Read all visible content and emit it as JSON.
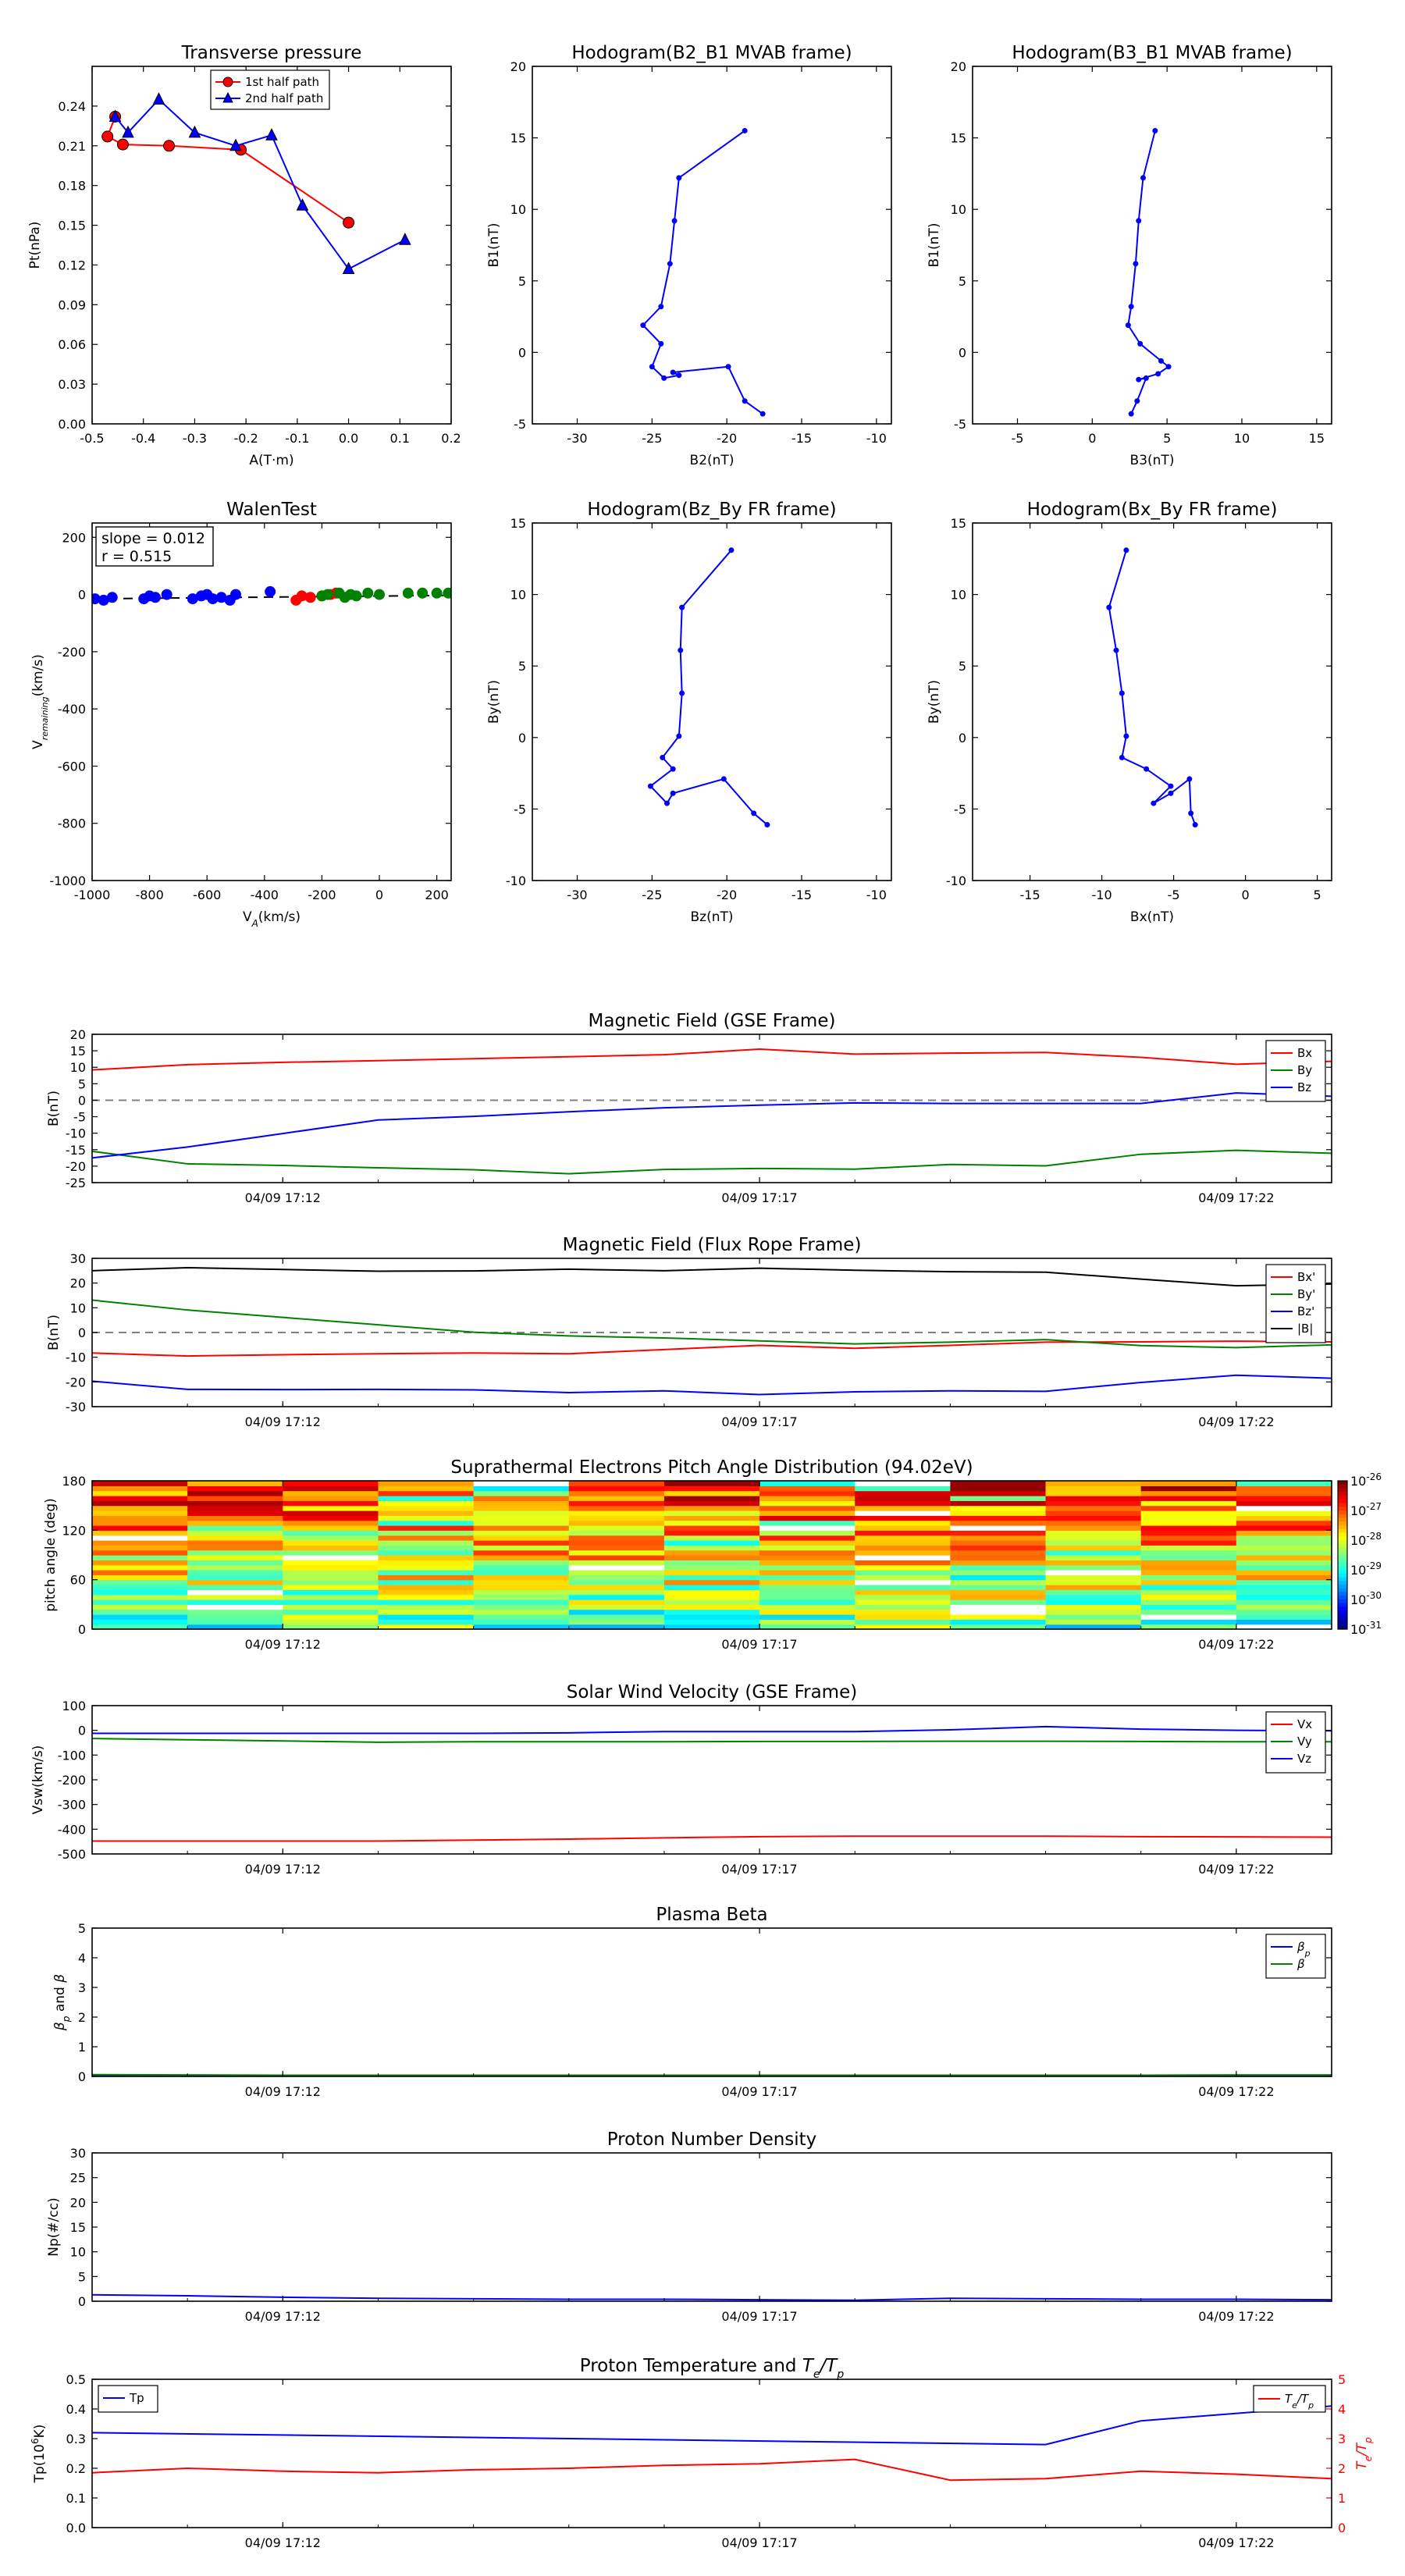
{
  "colors": {
    "red": "#ff0000",
    "green": "#008000",
    "blue": "#0000ff",
    "black": "#000000",
    "dash": "#808080"
  },
  "top_panels": [
    {
      "key": "tp",
      "title": "Transverse pressure",
      "xlabel": "A(T·m)",
      "ylabel": "Pt(nPa)",
      "xlim": [
        -0.5,
        0.2
      ],
      "ylim": [
        0.0,
        0.27
      ],
      "xticks": [
        "-0.5",
        "-0.4",
        "-0.3",
        "-0.2",
        "-0.1",
        "0.0",
        "0.1",
        "0.2"
      ],
      "yticks": [
        "0.00",
        "0.03",
        "0.06",
        "0.09",
        "0.12",
        "0.15",
        "0.18",
        "0.21",
        "0.24"
      ],
      "legend": [
        "1st half path",
        "2nd half path"
      ],
      "chart_data": {
        "type": "line",
        "series": [
          {
            "name": "1st half path",
            "color": "#ff0000",
            "marker": "circle",
            "x": [
              0.0,
              -0.21,
              -0.35,
              -0.44,
              -0.47,
              -0.455
            ],
            "y": [
              0.152,
              0.207,
              0.21,
              0.211,
              0.217,
              0.232
            ]
          },
          {
            "name": "2nd half path",
            "color": "#0000ff",
            "marker": "triangle",
            "x": [
              -0.455,
              -0.43,
              -0.37,
              -0.3,
              -0.22,
              -0.15,
              -0.09,
              0.0,
              0.11
            ],
            "y": [
              0.232,
              0.22,
              0.245,
              0.22,
              0.21,
              0.218,
              0.165,
              0.117,
              0.139
            ]
          }
        ]
      }
    },
    {
      "key": "h1",
      "title": "Hodogram(B2_B1 MVAB frame)",
      "xlabel": "B2(nT)",
      "ylabel": "B1(nT)",
      "xlim": [
        -33,
        -9
      ],
      "ylim": [
        -5,
        20
      ],
      "xticks": [
        "-30",
        "-25",
        "-20",
        "-15",
        "-10"
      ],
      "yticks": [
        "-5",
        "0",
        "5",
        "10",
        "15",
        "20"
      ],
      "chart_data": {
        "type": "line",
        "series": [
          {
            "color": "#0000ff",
            "x": [
              -18.8,
              -23.2,
              -23.5,
              -23.8,
              -24.4,
              -25.6,
              -24.4,
              -25.0,
              -24.2,
              -23.2,
              -23.6,
              -19.9,
              -18.8,
              -17.6
            ],
            "y": [
              15.5,
              12.2,
              9.2,
              6.2,
              3.2,
              1.9,
              0.6,
              -1.0,
              -1.8,
              -1.6,
              -1.4,
              -1.0,
              -3.4,
              -4.3
            ]
          }
        ]
      }
    },
    {
      "key": "h2",
      "title": "Hodogram(B3_B1 MVAB frame)",
      "xlabel": "B3(nT)",
      "ylabel": "B1(nT)",
      "xlim": [
        -8,
        16
      ],
      "ylim": [
        -5,
        20
      ],
      "xticks": [
        "-5",
        "0",
        "5",
        "10",
        "15"
      ],
      "yticks": [
        "-5",
        "0",
        "5",
        "10",
        "15",
        "20"
      ],
      "chart_data": {
        "type": "line",
        "series": [
          {
            "color": "#0000ff",
            "x": [
              4.2,
              3.4,
              3.1,
              2.9,
              2.6,
              2.4,
              3.2,
              4.6,
              5.1,
              4.4,
              3.1,
              3.6,
              3.0,
              2.6
            ],
            "y": [
              15.5,
              12.2,
              9.2,
              6.2,
              3.2,
              1.9,
              0.6,
              -0.6,
              -1.0,
              -1.5,
              -1.9,
              -1.8,
              -3.4,
              -4.3
            ]
          }
        ]
      }
    },
    {
      "key": "walen",
      "title": "WalenTest",
      "xlabel": "V_A(km/s)",
      "ylabel": "V_remaining(km/s)",
      "xlim": [
        -1000,
        250
      ],
      "ylim": [
        -1000,
        250
      ],
      "xticks": [
        "-1000",
        "-800",
        "-600",
        "-400",
        "-200",
        "0",
        "200"
      ],
      "yticks": [
        "-1000",
        "-800",
        "-600",
        "-400",
        "-200",
        "0",
        "200"
      ],
      "annotation": [
        "slope = 0.012",
        "r = 0.515"
      ],
      "chart_data": {
        "type": "scatter",
        "series": [
          {
            "color": "#0000ff",
            "x": [
              -990,
              -960,
              -930,
              -820,
              -800,
              -780,
              -740,
              -650,
              -620,
              -600,
              -580,
              -550,
              -520,
              -500,
              -380
            ],
            "y": [
              -15,
              -20,
              -10,
              -15,
              -5,
              -10,
              0,
              -15,
              -5,
              0,
              -15,
              -10,
              -20,
              0,
              10
            ]
          },
          {
            "color": "#ff0000",
            "x": [
              -290,
              -270,
              -240,
              -200,
              -170,
              -150
            ],
            "y": [
              -20,
              -5,
              -10,
              -5,
              0,
              5
            ]
          },
          {
            "color": "#008000",
            "x": [
              -200,
              -180,
              -140,
              -120,
              -100,
              -80,
              -40,
              0,
              100,
              150,
              200,
              240
            ],
            "y": [
              -5,
              0,
              5,
              -10,
              0,
              -5,
              5,
              0,
              5,
              5,
              5,
              5
            ]
          }
        ],
        "fit_line": {
          "x": [
            -1000,
            250
          ],
          "y": [
            -15,
            -3
          ]
        }
      }
    },
    {
      "key": "fr1",
      "title": "Hodogram(Bz_By FR frame)",
      "xlabel": "Bz(nT)",
      "ylabel": "By(nT)",
      "xlim": [
        -33,
        -9
      ],
      "ylim": [
        -10,
        15
      ],
      "xticks": [
        "-30",
        "-25",
        "-20",
        "-15",
        "-10"
      ],
      "yticks": [
        "-10",
        "-5",
        "0",
        "5",
        "10",
        "15"
      ],
      "chart_data": {
        "type": "line",
        "series": [
          {
            "color": "#0000ff",
            "x": [
              -19.7,
              -23.0,
              -23.1,
              -23.0,
              -23.2,
              -24.3,
              -23.6,
              -25.1,
              -24.0,
              -23.6,
              -20.2,
              -18.2,
              -17.3
            ],
            "y": [
              13.1,
              9.1,
              6.1,
              3.1,
              0.1,
              -1.4,
              -2.2,
              -3.4,
              -4.6,
              -3.9,
              -2.9,
              -5.3,
              -6.1
            ]
          }
        ]
      }
    },
    {
      "key": "fr2",
      "title": "Hodogram(Bx_By FR frame)",
      "xlabel": "Bx(nT)",
      "ylabel": "By(nT)",
      "xlim": [
        -19,
        6
      ],
      "ylim": [
        -10,
        15
      ],
      "xticks": [
        "-15",
        "-10",
        "-5",
        "0",
        "5"
      ],
      "yticks": [
        "-10",
        "-5",
        "0",
        "5",
        "10",
        "15"
      ],
      "chart_data": {
        "type": "line",
        "series": [
          {
            "color": "#0000ff",
            "x": [
              -8.3,
              -9.5,
              -9.0,
              -8.6,
              -8.3,
              -8.6,
              -6.9,
              -5.2,
              -6.4,
              -5.2,
              -3.9,
              -3.8,
              -3.5
            ],
            "y": [
              13.1,
              9.1,
              6.1,
              3.1,
              0.1,
              -1.4,
              -2.2,
              -3.4,
              -4.6,
              -3.9,
              -2.9,
              -5.3,
              -6.1
            ]
          }
        ]
      }
    }
  ],
  "time_ticks": [
    "04/09 17:12",
    "04/09 17:17",
    "04/09 17:22"
  ],
  "time_range": [
    "17:10:00",
    "17:23:00"
  ],
  "time_tick_minutes": [
    2,
    7,
    12
  ],
  "sample_minutes": [
    0,
    1,
    2,
    3,
    4,
    5,
    6,
    7,
    8,
    9,
    10,
    11,
    12,
    13
  ],
  "ts_panels": [
    {
      "key": "bgse",
      "title": "Magnetic Field (GSE Frame)",
      "ylabel": "B(nT)",
      "ylim": [
        -25,
        20
      ],
      "yticks": [
        "-25",
        "-20",
        "-15",
        "-10",
        "-5",
        "0",
        "5",
        "10",
        "15",
        "20"
      ],
      "zero_line": true,
      "legend": [
        "Bx",
        "By",
        "Bz"
      ],
      "legend_colors": [
        "#ff0000",
        "#008000",
        "#0000ff"
      ],
      "chart_data": {
        "type": "line",
        "series": [
          {
            "name": "Bx",
            "color": "#ff0000",
            "values": [
              9.2,
              10.8,
              11.5,
              12.0,
              12.6,
              13.2,
              13.8,
              15.5,
              14.0,
              14.3,
              14.5,
              13.0,
              10.9,
              11.8
            ]
          },
          {
            "name": "By",
            "color": "#008000",
            "values": [
              -15.5,
              -19.3,
              -19.8,
              -20.5,
              -21.1,
              -22.3,
              -21.0,
              -20.7,
              -20.9,
              -19.5,
              -19.9,
              -16.4,
              -15.2,
              -16.1
            ]
          },
          {
            "name": "Bz",
            "color": "#0000ff",
            "values": [
              -17.5,
              -14.2,
              -10.1,
              -6.0,
              -4.9,
              -3.5,
              -2.3,
              -1.5,
              -0.8,
              -1.0,
              -1.0,
              -1.0,
              2.2,
              1.2
            ]
          }
        ]
      }
    },
    {
      "key": "bfr",
      "title": "Magnetic Field (Flux Rope Frame)",
      "ylabel": "B(nT)",
      "ylim": [
        -30,
        30
      ],
      "yticks": [
        "-30",
        "-20",
        "-10",
        "0",
        "10",
        "20",
        "30"
      ],
      "zero_line": true,
      "legend": [
        "Bx'",
        "By'",
        "Bz'",
        "|B|"
      ],
      "legend_colors": [
        "#ff0000",
        "#008000",
        "#0000ff",
        "#000000"
      ],
      "chart_data": {
        "type": "line",
        "series": [
          {
            "name": "Bx'",
            "color": "#ff0000",
            "values": [
              -8.3,
              -9.5,
              -9.0,
              -8.6,
              -8.3,
              -8.6,
              -6.9,
              -5.2,
              -6.4,
              -5.2,
              -3.9,
              -3.8,
              -3.5,
              -3.8
            ]
          },
          {
            "name": "By'",
            "color": "#008000",
            "values": [
              13.1,
              9.1,
              6.1,
              3.1,
              0.1,
              -1.4,
              -2.2,
              -3.4,
              -4.6,
              -3.9,
              -2.9,
              -5.3,
              -6.1,
              -5.0
            ]
          },
          {
            "name": "Bz'",
            "color": "#0000ff",
            "values": [
              -19.7,
              -23.0,
              -23.1,
              -23.0,
              -23.2,
              -24.3,
              -23.6,
              -25.1,
              -24.0,
              -23.6,
              -23.8,
              -20.2,
              -17.3,
              -18.5
            ]
          },
          {
            "name": "|B|",
            "color": "#000000",
            "values": [
              25.0,
              26.2,
              25.5,
              24.8,
              24.9,
              25.6,
              25.0,
              26.0,
              25.2,
              24.6,
              24.4,
              21.6,
              18.9,
              19.6
            ]
          }
        ]
      }
    },
    {
      "key": "pad",
      "title": "Suprathermal Electrons Pitch Angle Distribution (94.02eV)",
      "ylabel": "pitch angle (deg)",
      "ylim": [
        0,
        180
      ],
      "yticks": [
        "0",
        "60",
        "120",
        "180"
      ],
      "colorbar_ticks": [
        "10",
        "10",
        "10",
        "10",
        "10",
        "10"
      ],
      "colorbar_exp": [
        "-26",
        "-27",
        "-28",
        "-29",
        "-30",
        "-31"
      ],
      "chart_data": {
        "type": "heatmap",
        "x_bins": 13,
        "y_bins": 30,
        "zlim_log": [
          -31,
          -26
        ],
        "seed": 7
      }
    },
    {
      "key": "vsw",
      "title": "Solar Wind Velocity (GSE Frame)",
      "ylabel": "Vsw(km/s)",
      "ylim": [
        -500,
        100
      ],
      "yticks": [
        "-500",
        "-400",
        "-300",
        "-200",
        "-100",
        "0",
        "100"
      ],
      "legend": [
        "Vx",
        "Vy",
        "Vz"
      ],
      "legend_colors": [
        "#ff0000",
        "#008000",
        "#0000ff"
      ],
      "chart_data": {
        "type": "line",
        "series": [
          {
            "name": "Vx",
            "color": "#ff0000",
            "values": [
              -448,
              -448,
              -448,
              -448,
              -444,
              -440,
              -435,
              -430,
              -428,
              -428,
              -428,
              -430,
              -431,
              -432
            ]
          },
          {
            "name": "Vy",
            "color": "#008000",
            "values": [
              -33,
              -38,
              -43,
              -48,
              -46,
              -46,
              -46,
              -45,
              -45,
              -44,
              -44,
              -45,
              -46,
              -46
            ]
          },
          {
            "name": "Vz",
            "color": "#0000ff",
            "values": [
              -12,
              -12,
              -12,
              -12,
              -12,
              -10,
              -5,
              -5,
              -5,
              2,
              15,
              5,
              0,
              -2
            ]
          }
        ]
      }
    },
    {
      "key": "beta",
      "title": "Plasma Beta",
      "ylabel": "βp and β",
      "ylim": [
        0,
        5
      ],
      "yticks": [
        "0",
        "1",
        "2",
        "3",
        "4",
        "5"
      ],
      "legend": [
        "βp",
        "β"
      ],
      "legend_colors": [
        "#0000ff",
        "#008000"
      ],
      "chart_data": {
        "type": "line",
        "series": [
          {
            "name": "βp",
            "color": "#0000ff",
            "values": [
              0.02,
              0.02,
              0.02,
              0.02,
              0.02,
              0.02,
              0.02,
              0.02,
              0.02,
              0.02,
              0.02,
              0.02,
              0.02,
              0.02
            ]
          },
          {
            "name": "β",
            "color": "#008000",
            "values": [
              0.06,
              0.05,
              0.04,
              0.04,
              0.04,
              0.04,
              0.04,
              0.04,
              0.04,
              0.04,
              0.04,
              0.04,
              0.05,
              0.05
            ]
          }
        ]
      }
    },
    {
      "key": "np",
      "title": "Proton Number Density",
      "ylabel": "Np(#/cc)",
      "ylim": [
        0,
        30
      ],
      "yticks": [
        "0",
        "5",
        "10",
        "15",
        "20",
        "25",
        "30"
      ],
      "chart_data": {
        "type": "line",
        "series": [
          {
            "color": "#0000ff",
            "values": [
              1.3,
              1.1,
              0.8,
              0.6,
              0.5,
              0.4,
              0.4,
              0.3,
              0.2,
              0.6,
              0.5,
              0.4,
              0.4,
              0.3
            ]
          }
        ]
      }
    },
    {
      "key": "tp",
      "title": "Proton Temperature and Te/Tp",
      "ylabel": "Tp(10⁶K)",
      "y2label": "Te/Tp",
      "ylim": [
        0,
        0.5
      ],
      "yticks": [
        "0.0",
        "0.1",
        "0.2",
        "0.3",
        "0.4",
        "0.5"
      ],
      "y2lim": [
        0,
        5
      ],
      "y2ticks": [
        "0",
        "1",
        "2",
        "3",
        "4",
        "5"
      ],
      "legend": [
        "Tp"
      ],
      "legend2": [
        "Te/Tp"
      ],
      "chart_data": {
        "type": "line",
        "series": [
          {
            "name": "Tp",
            "color": "#0000ff",
            "axis": "left",
            "minutes": [
              0,
              10,
              11,
              13
            ],
            "values": [
              0.32,
              0.28,
              0.36,
              0.41
            ],
            "points_at": "interp"
          },
          {
            "name": "Te/Tp",
            "color": "#ff0000",
            "axis": "right",
            "values": [
              1.85,
              2.0,
              1.9,
              1.85,
              1.95,
              2.0,
              2.1,
              2.15,
              2.3,
              1.6,
              1.65,
              1.9,
              1.8,
              1.65
            ]
          }
        ]
      }
    }
  ]
}
